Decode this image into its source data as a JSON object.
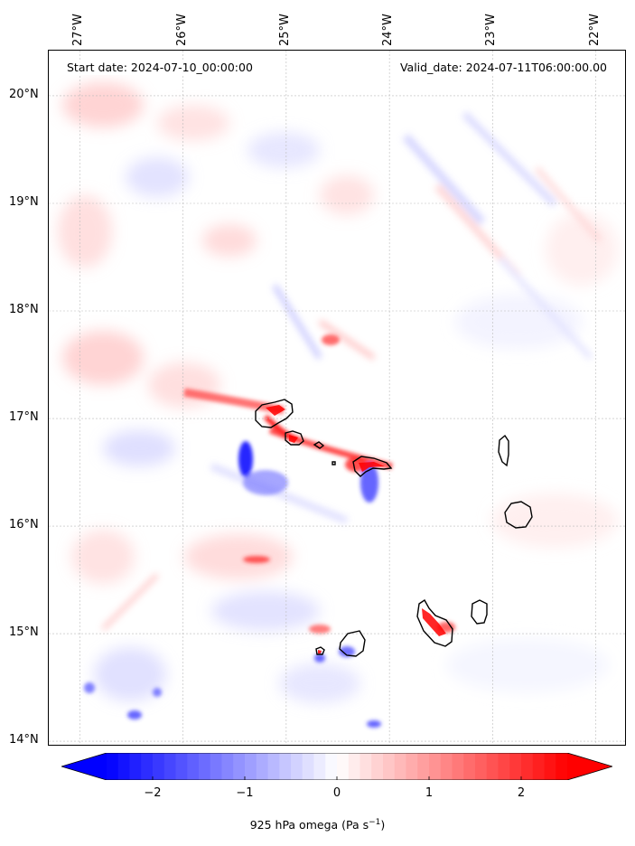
{
  "header": {
    "start_date": "Start date: 2024-07-10_00:00:00",
    "valid_date": "Valid_date: 2024-07-11T06:00:00.00"
  },
  "axes": {
    "longitude_labels": [
      "27°W",
      "26°W",
      "25°W",
      "24°W",
      "23°W",
      "22°W"
    ],
    "longitude_values": [
      -27,
      -26,
      -25,
      -24,
      -23,
      -22
    ],
    "latitude_labels": [
      "20°N",
      "19°N",
      "18°N",
      "17°N",
      "16°N",
      "15°N",
      "14°N"
    ],
    "latitude_values": [
      20,
      19,
      18,
      17,
      16,
      15,
      14
    ],
    "lon_range": [
      -27.3,
      -21.7
    ],
    "lat_range": [
      13.95,
      20.42
    ],
    "grid": true
  },
  "colorbar": {
    "label_text": "925 hPa omega (Pa s",
    "label_exponent": "−1",
    "label_close": ")",
    "tick_labels": [
      "−2",
      "−1",
      "0",
      "1",
      "2"
    ],
    "tick_values": [
      -2,
      -1,
      0,
      1,
      2
    ],
    "range": [
      -2.5,
      2.5
    ],
    "extend": "both",
    "negative_color": "#0000ff",
    "positive_color": "#ff0000"
  },
  "features": {
    "coastline_color": "#000000",
    "islands": [
      "santo-antao",
      "sao-vicente",
      "santa-luzia",
      "sao-nicolau",
      "sal",
      "boa-vista",
      "santiago",
      "maio",
      "fogo",
      "brava"
    ]
  }
}
